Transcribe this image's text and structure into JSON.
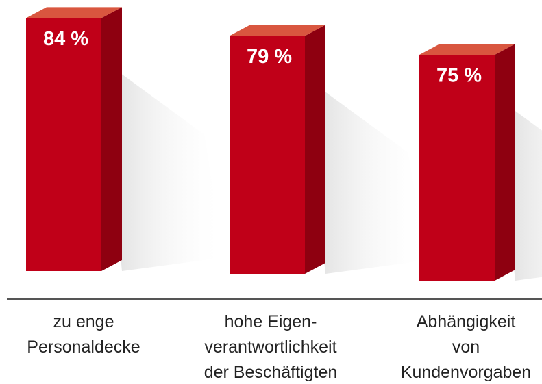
{
  "chart_data": {
    "type": "bar3d",
    "categories": [
      "zu enge\nPersonaldecke",
      "hohe Eigen-\nverantwortlichkeit\nder Beschäftigten",
      "Abhängigkeit\nvon\nKundenvorgaben"
    ],
    "values": [
      84,
      79,
      75
    ],
    "value_labels": [
      "84 %",
      "79 %",
      "75 %"
    ],
    "color": "#c00018"
  }
}
